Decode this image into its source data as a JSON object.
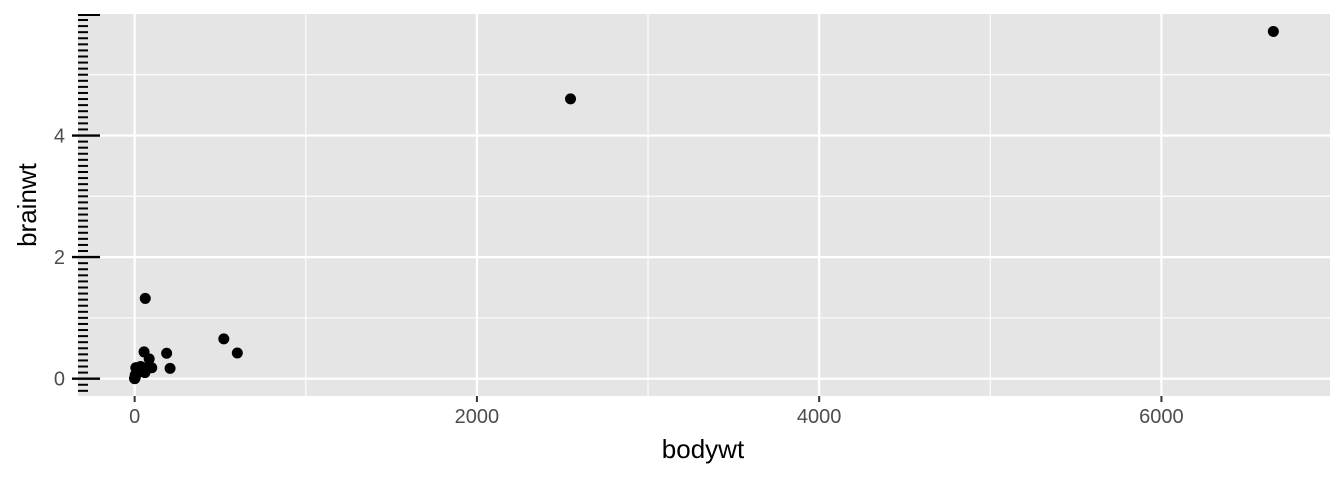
{
  "chart_data": {
    "type": "scatter",
    "title": "",
    "xlabel": "bodywt",
    "ylabel": "brainwt",
    "xlim": [
      -331,
      6985
    ],
    "ylim": [
      -0.285,
      5.999
    ],
    "x_ticks": [
      0,
      2000,
      4000,
      6000
    ],
    "x_tick_labels": [
      "0",
      "2000",
      "4000",
      "6000"
    ],
    "y_ticks": [
      0,
      2,
      4
    ],
    "y_tick_labels": [
      "0",
      "2",
      "4"
    ],
    "x_minor": [
      1000,
      3000,
      5000
    ],
    "y_minor": [
      1,
      3,
      5
    ],
    "grid": true,
    "panel_color": "#e5e5e5",
    "grid_color": "#ffffff",
    "point_color": "#000000",
    "series": [
      {
        "x": [
          6654,
          2547,
          521,
          600,
          187,
          207,
          62,
          55,
          36,
          27.7,
          100,
          85,
          35,
          10,
          6.8,
          60,
          4.2,
          3.5,
          1,
          0.1,
          3.3,
          1.4,
          0.9,
          2.5,
          0.05,
          0.3,
          0.4,
          5,
          80,
          50
        ],
        "y": [
          5.712,
          4.603,
          0.655,
          0.423,
          0.419,
          0.169,
          1.32,
          0.44,
          0.18,
          0.115,
          0.18,
          0.325,
          0.2,
          0.179,
          0.18,
          0.1,
          0.035,
          0.025,
          0.01,
          0.001,
          0.06,
          0.012,
          0.006,
          0.012,
          0.0003,
          0.003,
          0.005,
          0.06,
          0.2,
          0.15
        ]
      }
    ]
  }
}
